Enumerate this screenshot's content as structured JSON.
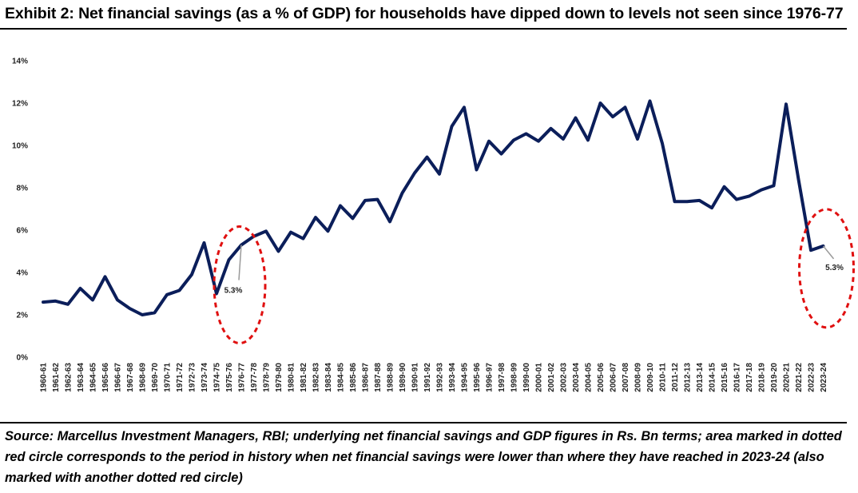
{
  "title": "Exhibit 2: Net financial savings (as a % of GDP) for households have dipped down to levels not seen since 1976-77",
  "source": "Source: Marcellus Investment Managers, RBI; underlying net financial savings and GDP figures in Rs. Bn terms; area marked in dotted red circle corresponds to the period in history when net financial savings were lower than where they have reached in 2023-24 (also marked with another dotted red circle)",
  "colors": {
    "line": "#0b1e5a",
    "highlight": "#e01010",
    "leader": "#9a9a9a"
  },
  "chart_data": {
    "type": "line",
    "title": "",
    "xlabel": "",
    "ylabel": "",
    "ylim": [
      0,
      14
    ],
    "yticks": [
      "0%",
      "2%",
      "4%",
      "6%",
      "8%",
      "10%",
      "12%",
      "14%"
    ],
    "grid": false,
    "categories": [
      "1960-61",
      "1961-62",
      "1962-63",
      "1963-64",
      "1964-65",
      "1965-66",
      "1966-67",
      "1967-68",
      "1968-69",
      "1969-70",
      "1970-71",
      "1971-72",
      "1972-73",
      "1973-74",
      "1974-75",
      "1975-76",
      "1976-77",
      "1977-78",
      "1978-79",
      "1979-80",
      "1980-81",
      "1981-82",
      "1982-83",
      "1983-84",
      "1984-85",
      "1985-86",
      "1986-87",
      "1987-88",
      "1988-89",
      "1989-90",
      "1990-91",
      "1991-92",
      "1992-93",
      "1993-94",
      "1994-95",
      "1995-96",
      "1996-97",
      "1997-98",
      "1998-99",
      "1999-00",
      "2000-01",
      "2001-02",
      "2002-03",
      "2003-04",
      "2004-05",
      "2005-06",
      "2006-07",
      "2007-08",
      "2008-09",
      "2009-10",
      "2010-11",
      "2011-12",
      "2012-13",
      "2013-14",
      "2014-15",
      "2015-16",
      "2016-17",
      "2017-18",
      "2018-19",
      "2019-20",
      "2020-21",
      "2021-22",
      "2022-23",
      "2023-24"
    ],
    "values": [
      2.6,
      2.65,
      2.5,
      3.25,
      2.7,
      3.8,
      2.7,
      2.3,
      2.0,
      2.1,
      2.95,
      3.15,
      3.9,
      5.4,
      3.0,
      4.6,
      5.3,
      5.7,
      5.95,
      5.0,
      5.9,
      5.6,
      6.6,
      5.95,
      7.15,
      6.55,
      7.4,
      7.45,
      6.4,
      7.75,
      8.7,
      9.45,
      8.65,
      10.9,
      11.8,
      8.85,
      10.2,
      9.6,
      10.25,
      10.55,
      10.2,
      10.8,
      10.3,
      11.3,
      10.25,
      12.0,
      11.35,
      11.8,
      10.3,
      12.1,
      10.1,
      7.35,
      7.35,
      7.4,
      7.05,
      8.05,
      7.45,
      7.6,
      7.9,
      8.1,
      11.95,
      8.4,
      5.05,
      5.25
    ],
    "annotations": [
      {
        "category": "1976-77",
        "label": "5.3%"
      },
      {
        "category": "2023-24",
        "label": "5.3%"
      }
    ]
  }
}
